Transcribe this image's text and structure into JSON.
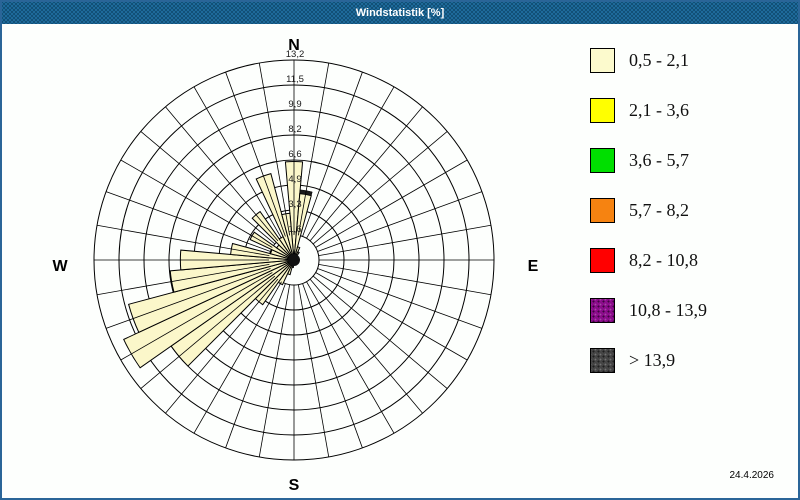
{
  "window": {
    "title": "Windstatistik [%]",
    "title_bar_color": "#1E6A9A",
    "border_color": "#2A6598",
    "date_label": "24.4.2026"
  },
  "chart_data": {
    "type": "windrose",
    "unit": "%",
    "title": "Windstatistik [%]",
    "sector_width_deg": 10,
    "num_sectors": 36,
    "rings": [
      1.65,
      3.3,
      4.95,
      6.6,
      8.25,
      9.9,
      11.55,
      13.2
    ],
    "ring_labels": [
      "1,6",
      "3,3",
      "4,9",
      "6,6",
      "8,2",
      "9,9",
      "11,5",
      "13,2"
    ],
    "max": 13.2,
    "grid": "on",
    "inner_hole": 1.65,
    "compass": {
      "n": "N",
      "e": "E",
      "s": "S",
      "w": "W"
    },
    "petal_color": "#FBF7CA",
    "grid_color": "#000000",
    "center_color": "#111111",
    "directions_deg": [
      0,
      10,
      20,
      30,
      40,
      50,
      60,
      70,
      80,
      90,
      100,
      110,
      120,
      130,
      140,
      150,
      160,
      170,
      180,
      190,
      200,
      210,
      220,
      230,
      240,
      250,
      260,
      270,
      280,
      290,
      300,
      310,
      320,
      330,
      340,
      350
    ],
    "values": [
      6.5,
      4.4,
      0.9,
      0.6,
      0,
      0,
      0,
      0,
      0,
      0,
      0,
      0,
      0,
      0,
      0,
      0,
      0,
      0,
      0,
      0.5,
      1.0,
      1.8,
      3.6,
      9.9,
      12.4,
      11.3,
      8.2,
      7.5,
      4.2,
      1.6,
      3.2,
      1.4,
      3.9,
      1.7,
      5.9,
      3.1
    ],
    "dark_tip": {
      "dir": 10,
      "from": 4.4,
      "to": 4.65,
      "color": "#1a1a1a"
    }
  },
  "legend": {
    "items": [
      {
        "label": "0,5 - 2,1",
        "color": "#FCFACD",
        "textured": false
      },
      {
        "label": "2,1 - 3,6",
        "color": "#FFFF00",
        "textured": false
      },
      {
        "label": "3,6 - 5,7",
        "color": "#00DF00",
        "textured": false
      },
      {
        "label": "5,7 - 8,2",
        "color": "#F68311",
        "textured": false
      },
      {
        "label": "8,2 - 10,8",
        "color": "#FF0000",
        "textured": false
      },
      {
        "label": "10,8 - 13,9",
        "color": "#8B0C8B",
        "textured": true
      },
      {
        "label": "> 13,9",
        "color": "#454545",
        "textured": true
      }
    ]
  }
}
